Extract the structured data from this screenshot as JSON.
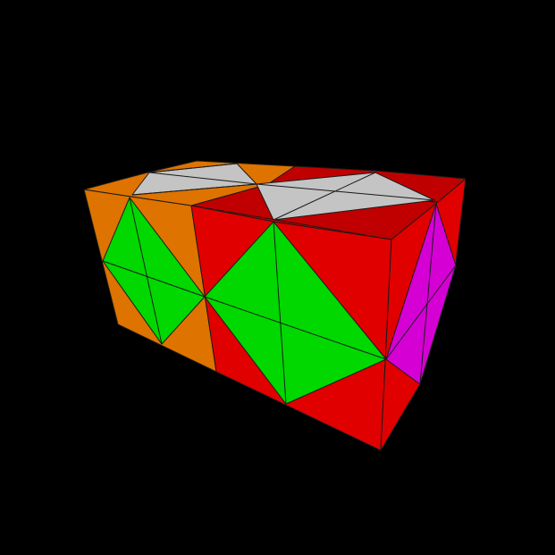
{
  "scene": {
    "background": "#000000",
    "stroke": "#1a1a1a"
  },
  "colors": {
    "orange": "#de7300",
    "red": "#e00000",
    "dark-red": "#c00000",
    "green": "#00d800",
    "white": "#c4c4c4",
    "magenta": "#d400d4"
  }
}
